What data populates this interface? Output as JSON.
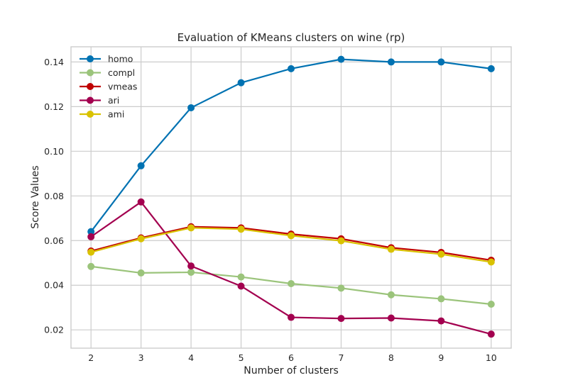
{
  "chart_data": {
    "type": "line",
    "title": "Evaluation of KMeans clusters on wine (rp)",
    "xlabel": "Number of clusters",
    "ylabel": "Score Values",
    "x": [
      2,
      3,
      4,
      5,
      6,
      7,
      8,
      9,
      10
    ],
    "xlim": [
      1.6,
      10.4
    ],
    "ylim": [
      0.0118,
      0.1468
    ],
    "yticks": [
      0.02,
      0.04,
      0.06,
      0.08,
      0.1,
      0.12,
      0.14
    ],
    "ytick_labels": [
      "0.02",
      "0.04",
      "0.06",
      "0.08",
      "0.10",
      "0.12",
      "0.14"
    ],
    "xtick_labels": [
      "2",
      "3",
      "4",
      "5",
      "6",
      "7",
      "8",
      "9",
      "10"
    ],
    "grid": true,
    "legend_position": "top-left",
    "series": [
      {
        "name": "homo",
        "color": "#0072b2",
        "values": [
          0.064,
          0.0935,
          0.1195,
          0.1307,
          0.137,
          0.1412,
          0.14,
          0.14,
          0.137
        ]
      },
      {
        "name": "compl",
        "color": "#9bc47b",
        "values": [
          0.0484,
          0.0455,
          0.0458,
          0.0437,
          0.0407,
          0.0387,
          0.0357,
          0.0339,
          0.0315
        ]
      },
      {
        "name": "vmeas",
        "color": "#c00000",
        "values": [
          0.0553,
          0.0612,
          0.0662,
          0.0657,
          0.0629,
          0.0608,
          0.0568,
          0.0547,
          0.0512
        ]
      },
      {
        "name": "ari",
        "color": "#a3004f",
        "values": [
          0.0617,
          0.0773,
          0.0486,
          0.0396,
          0.0256,
          0.0251,
          0.0253,
          0.024,
          0.0181
        ]
      },
      {
        "name": "ami",
        "color": "#d9c200",
        "values": [
          0.0548,
          0.0608,
          0.0657,
          0.0651,
          0.0622,
          0.0599,
          0.0561,
          0.0539,
          0.0504
        ]
      }
    ]
  }
}
